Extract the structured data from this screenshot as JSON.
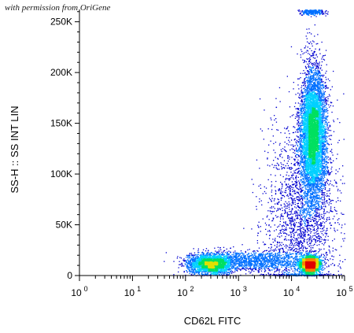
{
  "watermark": "with permission from OriGene",
  "chart_data": {
    "type": "scatter",
    "title": "",
    "xlabel": "CD62L FITC",
    "ylabel": "SS-H :: SS INT LIN",
    "x_scale": "log",
    "xlim": [
      1,
      100000
    ],
    "ylim": [
      0,
      262144
    ],
    "x_ticks": [
      {
        "base": "10",
        "exp": "0",
        "value": 1
      },
      {
        "base": "10",
        "exp": "1",
        "value": 10
      },
      {
        "base": "10",
        "exp": "2",
        "value": 100
      },
      {
        "base": "10",
        "exp": "3",
        "value": 1000
      },
      {
        "base": "10",
        "exp": "4",
        "value": 10000
      },
      {
        "base": "10",
        "exp": "5",
        "value": 100000
      }
    ],
    "y_ticks": [
      {
        "label": "0",
        "value": 0
      },
      {
        "label": "50K",
        "value": 50000
      },
      {
        "label": "100K",
        "value": 100000
      },
      {
        "label": "150K",
        "value": 150000
      },
      {
        "label": "200K",
        "value": 200000
      },
      {
        "label": "250K",
        "value": 250000
      }
    ],
    "grid": false,
    "colormap": [
      "#0000d0",
      "#0070ff",
      "#00d0ff",
      "#00e060",
      "#e0e000",
      "#ff8000",
      "#e00000"
    ],
    "populations": [
      {
        "x_center": 300,
        "x_log_sd": 0.22,
        "y_center": 12000,
        "y_sd": 5000,
        "count": 2600
      },
      {
        "x_center": 22000,
        "x_log_sd": 0.09,
        "y_center": 11000,
        "y_sd": 4000,
        "count": 2600
      },
      {
        "x_center": 2500,
        "x_log_sd": 0.45,
        "y_center": 15000,
        "y_sd": 5000,
        "count": 1200
      },
      {
        "x_center": 25000,
        "x_log_sd": 0.12,
        "y_center": 140000,
        "y_sd": 32000,
        "count": 6500
      },
      {
        "x_center": 15000,
        "x_log_sd": 0.35,
        "y_center": 60000,
        "y_sd": 45000,
        "count": 2200
      },
      {
        "x_center": 25000,
        "x_log_sd": 0.12,
        "y_center": 260000,
        "y_sd": 1500,
        "count": 250
      }
    ]
  }
}
